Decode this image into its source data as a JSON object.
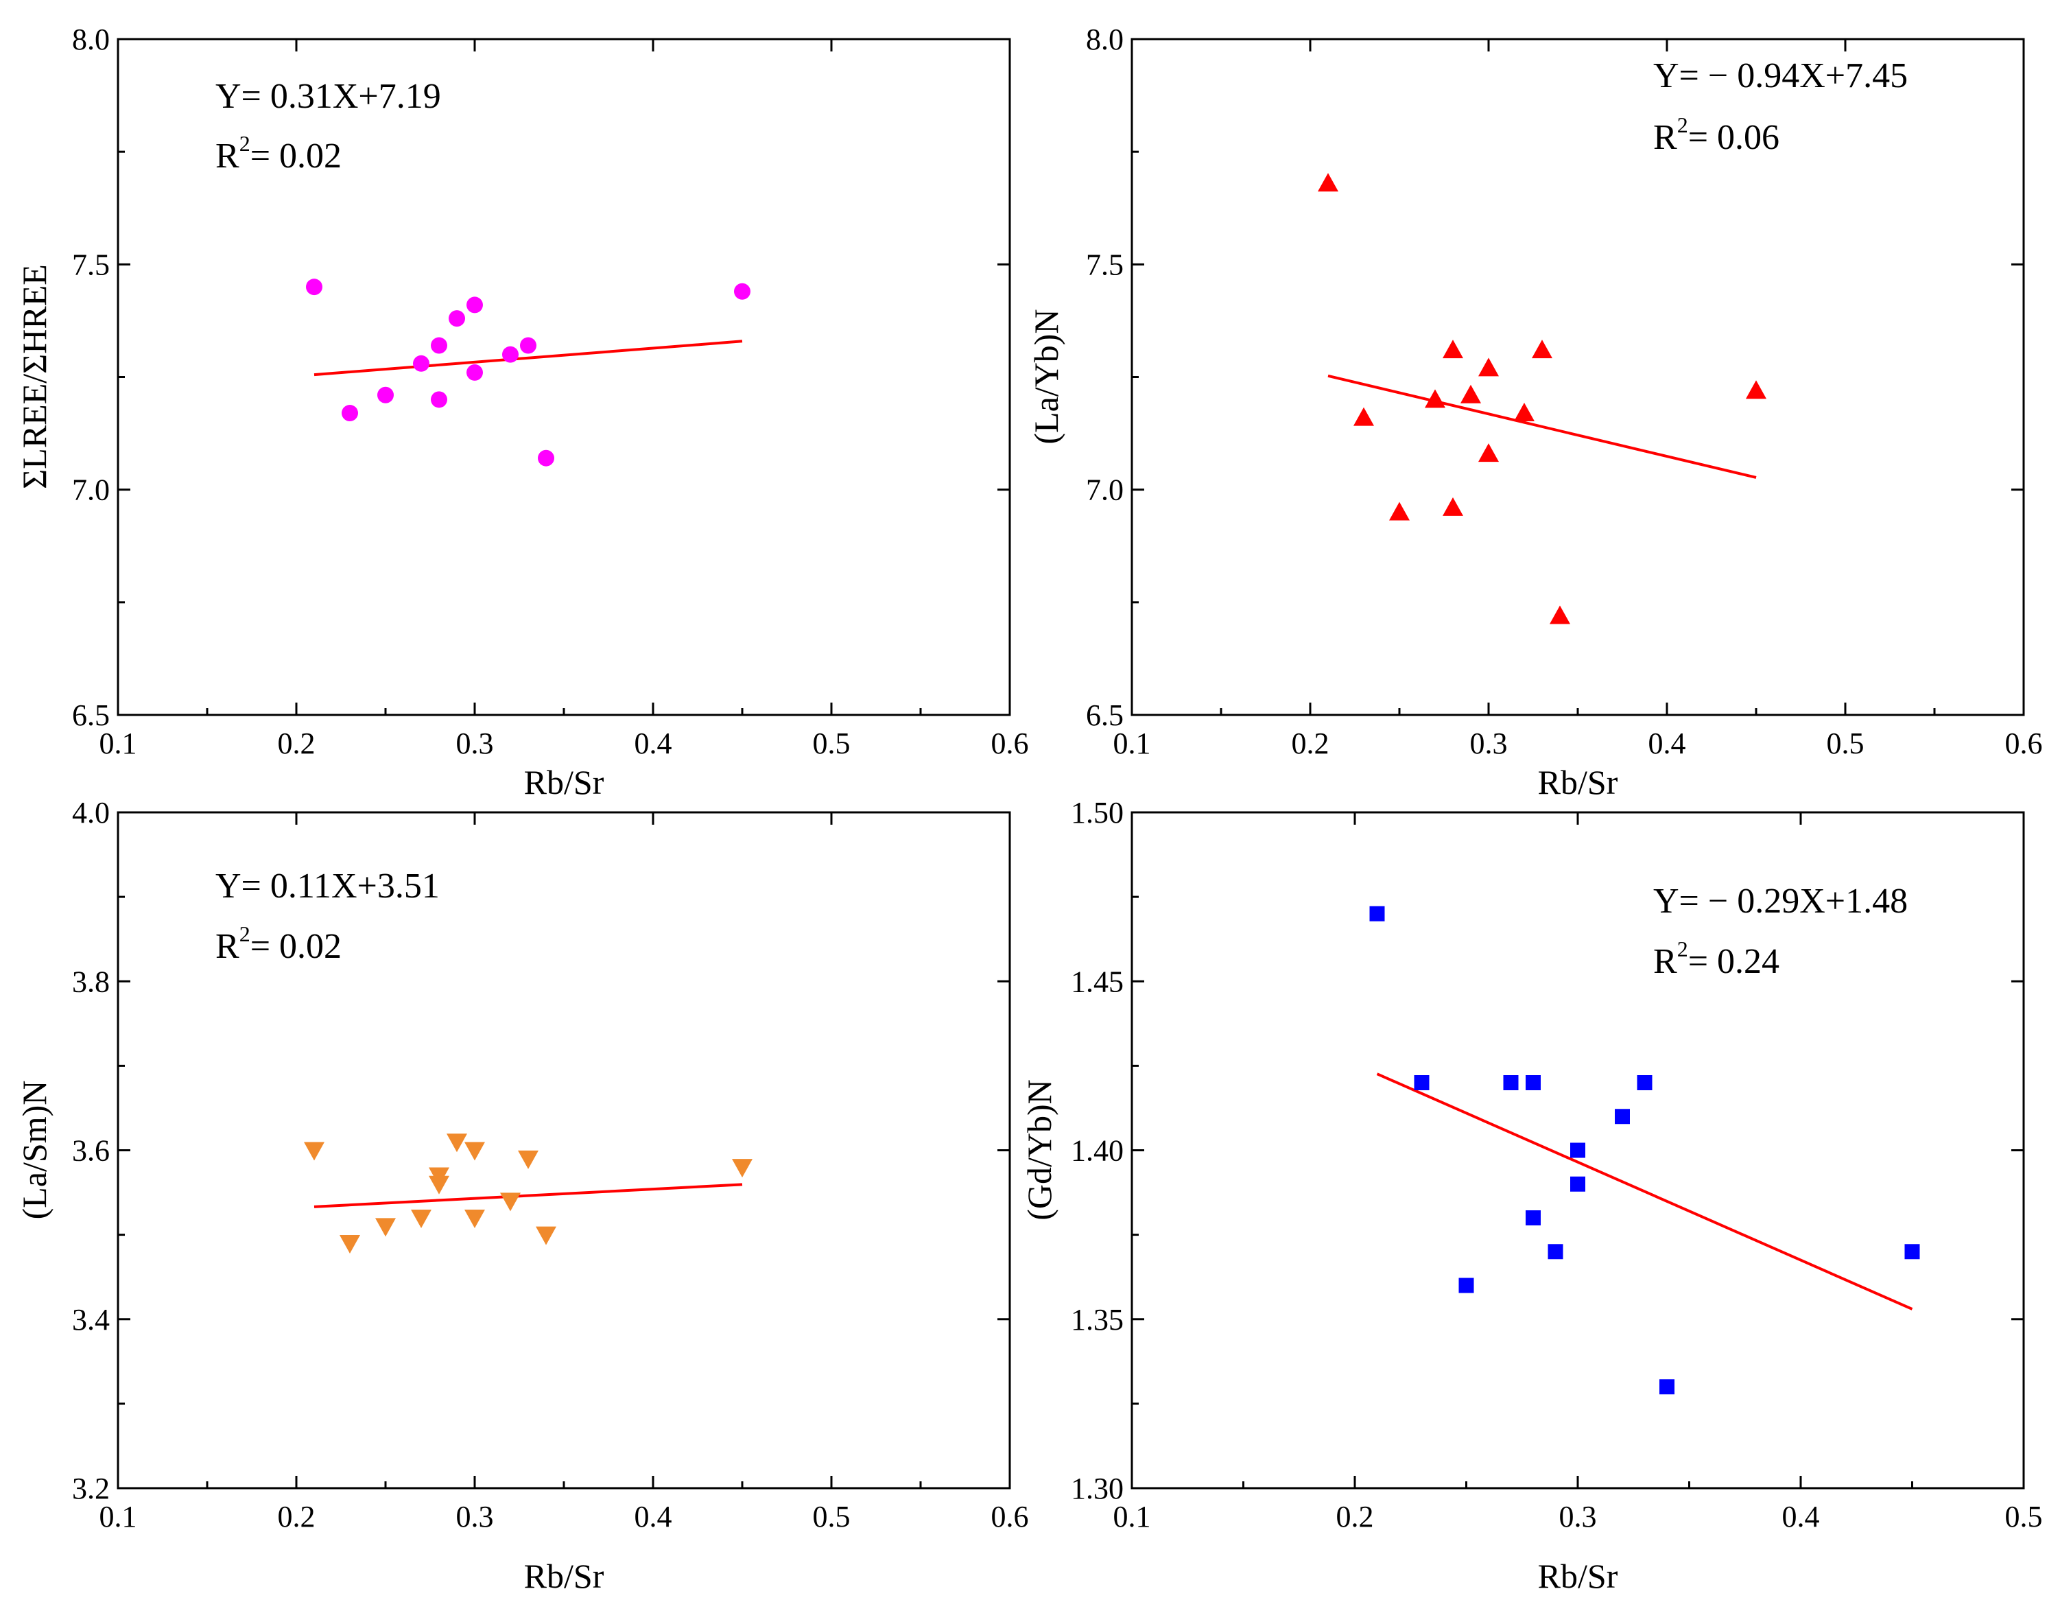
{
  "chart_data": [
    {
      "type": "scatter",
      "marker": "circle",
      "color": "#ff00ff",
      "fit_color": "#ff0000",
      "xlabel": "Rb/Sr",
      "ylabel": "ΣLREE/ΣHREE",
      "xlim": [
        0.1,
        0.6
      ],
      "ylim": [
        6.5,
        8.0
      ],
      "xticks": [
        0.1,
        0.2,
        0.3,
        0.4,
        0.5,
        0.6
      ],
      "yticks": [
        6.5,
        7.0,
        7.5,
        8.0
      ],
      "x_tick_labels": [
        "0.1",
        "0.2",
        "0.3",
        "0.4",
        "0.5",
        "0.6"
      ],
      "y_tick_labels": [
        "6.5",
        "7.0",
        "7.5",
        "8.0"
      ],
      "x": [
        0.21,
        0.23,
        0.25,
        0.27,
        0.28,
        0.28,
        0.29,
        0.3,
        0.3,
        0.32,
        0.33,
        0.34,
        0.45
      ],
      "y": [
        7.45,
        7.17,
        7.21,
        7.28,
        7.32,
        7.2,
        7.38,
        7.41,
        7.26,
        7.3,
        7.32,
        7.07,
        7.44
      ],
      "fit": {
        "slope": 0.31,
        "intercept": 7.19,
        "x_range": [
          0.21,
          0.45
        ]
      },
      "equation": "Y= 0.31X+7.19",
      "r2_prefix": "R",
      "r2_exp": "2",
      "r2_value": "= 0.02"
    },
    {
      "type": "scatter",
      "marker": "triangle-up",
      "color": "#ff0000",
      "fit_color": "#ff0000",
      "xlabel": "Rb/Sr",
      "ylabel": "(La/Yb)N",
      "xlim": [
        0.1,
        0.6
      ],
      "ylim": [
        6.5,
        8.0
      ],
      "xticks": [
        0.1,
        0.2,
        0.3,
        0.4,
        0.5,
        0.6
      ],
      "yticks": [
        6.5,
        7.0,
        7.5,
        8.0
      ],
      "x_tick_labels": [
        "0.1",
        "0.2",
        "0.3",
        "0.4",
        "0.5",
        "0.6"
      ],
      "y_tick_labels": [
        "6.5",
        "7.0",
        "7.5",
        "8.0"
      ],
      "x": [
        0.21,
        0.23,
        0.25,
        0.27,
        0.28,
        0.28,
        0.29,
        0.3,
        0.3,
        0.32,
        0.33,
        0.34,
        0.45
      ],
      "y": [
        7.68,
        7.16,
        6.95,
        7.2,
        7.31,
        6.96,
        7.21,
        7.27,
        7.08,
        7.17,
        7.31,
        6.72,
        7.22
      ],
      "fit": {
        "slope": -0.94,
        "intercept": 7.45,
        "x_range": [
          0.21,
          0.45
        ]
      },
      "equation": "Y= − 0.94X+7.45",
      "r2_prefix": "R",
      "r2_exp": "2",
      "r2_value": "= 0.06"
    },
    {
      "type": "scatter",
      "marker": "triangle-down",
      "color": "#f08a2c",
      "fit_color": "#ff0000",
      "xlabel": "Rb/Sr",
      "ylabel": "(La/Sm)N",
      "xlim": [
        0.1,
        0.6
      ],
      "ylim": [
        3.2,
        4.0
      ],
      "xticks": [
        0.1,
        0.2,
        0.3,
        0.4,
        0.5,
        0.6
      ],
      "yticks": [
        3.2,
        3.4,
        3.6,
        3.8,
        4.0
      ],
      "x_tick_labels": [
        "0.1",
        "0.2",
        "0.3",
        "0.4",
        "0.5",
        "0.6"
      ],
      "y_tick_labels": [
        "3.2",
        "3.4",
        "3.6",
        "3.8",
        "4.0"
      ],
      "x": [
        0.21,
        0.23,
        0.25,
        0.27,
        0.28,
        0.28,
        0.29,
        0.3,
        0.3,
        0.32,
        0.33,
        0.34,
        0.45
      ],
      "y": [
        3.6,
        3.49,
        3.51,
        3.52,
        3.57,
        3.56,
        3.61,
        3.6,
        3.52,
        3.54,
        3.59,
        3.5,
        3.58
      ],
      "fit": {
        "slope": 0.11,
        "intercept": 3.51,
        "x_range": [
          0.21,
          0.45
        ]
      },
      "equation": "Y= 0.11X+3.51",
      "r2_prefix": "R",
      "r2_exp": "2",
      "r2_value": "= 0.02"
    },
    {
      "type": "scatter",
      "marker": "square",
      "color": "#0000ff",
      "fit_color": "#ff0000",
      "xlabel": "Rb/Sr",
      "ylabel": "(Gd/Yb)N",
      "xlim": [
        0.1,
        0.5
      ],
      "ylim": [
        1.3,
        1.5
      ],
      "xticks": [
        0.1,
        0.2,
        0.3,
        0.4,
        0.5
      ],
      "yticks": [
        1.3,
        1.35,
        1.4,
        1.45,
        1.5
      ],
      "x_tick_labels": [
        "0.1",
        "0.2",
        "0.3",
        "0.4",
        "0.5"
      ],
      "y_tick_labels": [
        "1.30",
        "1.35",
        "1.40",
        "1.45",
        "1.50"
      ],
      "x": [
        0.21,
        0.23,
        0.25,
        0.27,
        0.28,
        0.28,
        0.29,
        0.3,
        0.3,
        0.32,
        0.33,
        0.34,
        0.45
      ],
      "y": [
        1.47,
        1.42,
        1.36,
        1.42,
        1.42,
        1.38,
        1.37,
        1.4,
        1.39,
        1.41,
        1.42,
        1.33,
        1.37
      ],
      "fit": {
        "slope": -0.29,
        "intercept": 1.4835,
        "x_range": [
          0.21,
          0.45
        ]
      },
      "equation": "Y= − 0.29X+1.48",
      "r2_prefix": "R",
      "r2_exp": "2",
      "r2_value": "= 0.24"
    }
  ]
}
